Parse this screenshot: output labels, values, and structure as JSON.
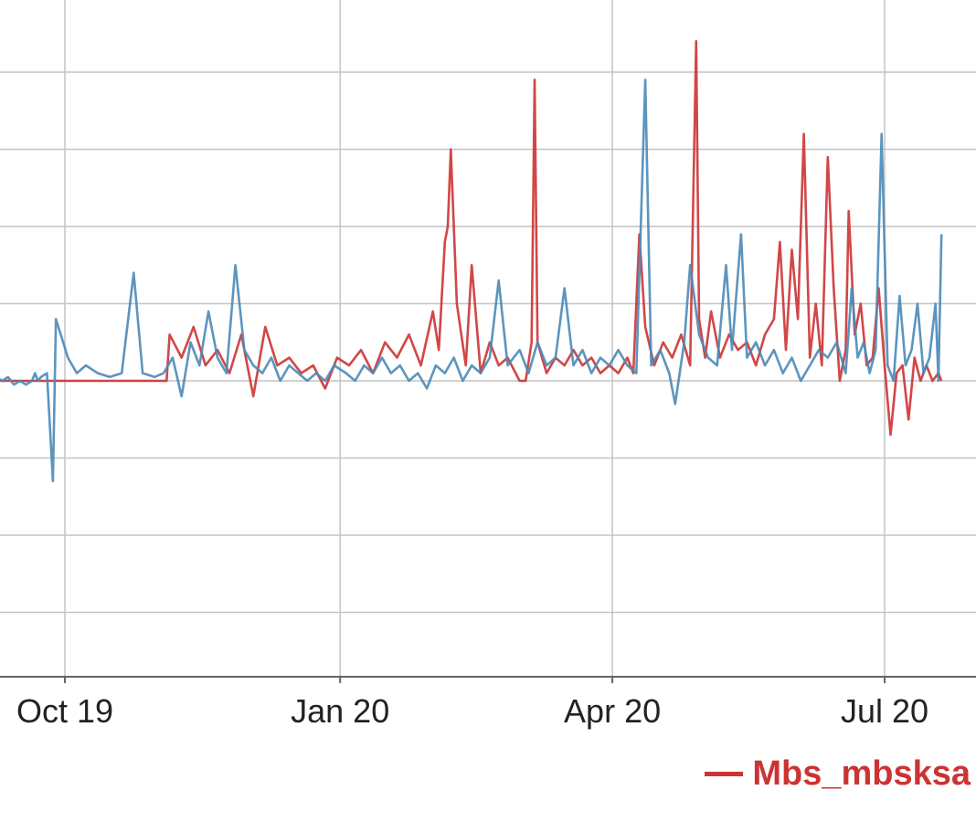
{
  "chart_data": {
    "type": "line",
    "x_tick_labels": [
      "Oct 19",
      "Jan 20",
      "Apr 20",
      "Jul 20"
    ],
    "x_range": [
      "2019-08-10",
      "2020-07-31"
    ],
    "y_range": [
      -4,
      4
    ],
    "y_labels_visible": false,
    "grid": true,
    "legend_position": "bottom-right",
    "legend": [
      "Mbs_mbsksa"
    ],
    "series": [
      {
        "name": "Mbs_mbsksa",
        "color": "#cc3333",
        "points": [
          [
            "2019-08-10",
            0.0
          ],
          [
            "2019-09-01",
            0.0
          ],
          [
            "2019-09-20",
            0.0
          ],
          [
            "2019-10-10",
            0.0
          ],
          [
            "2019-10-30",
            0.0
          ],
          [
            "2019-11-04",
            0.0
          ],
          [
            "2019-11-05",
            0.6
          ],
          [
            "2019-11-09",
            0.3
          ],
          [
            "2019-11-13",
            0.7
          ],
          [
            "2019-11-17",
            0.2
          ],
          [
            "2019-11-21",
            0.4
          ],
          [
            "2019-11-25",
            0.1
          ],
          [
            "2019-11-29",
            0.6
          ],
          [
            "2019-12-03",
            -0.2
          ],
          [
            "2019-12-07",
            0.7
          ],
          [
            "2019-12-11",
            0.2
          ],
          [
            "2019-12-15",
            0.3
          ],
          [
            "2019-12-19",
            0.1
          ],
          [
            "2019-12-23",
            0.2
          ],
          [
            "2019-12-27",
            -0.1
          ],
          [
            "2019-12-31",
            0.3
          ],
          [
            "2020-01-04",
            0.2
          ],
          [
            "2020-01-08",
            0.4
          ],
          [
            "2020-01-12",
            0.1
          ],
          [
            "2020-01-16",
            0.5
          ],
          [
            "2020-01-20",
            0.3
          ],
          [
            "2020-01-24",
            0.6
          ],
          [
            "2020-01-28",
            0.2
          ],
          [
            "2020-02-01",
            0.9
          ],
          [
            "2020-02-03",
            0.4
          ],
          [
            "2020-02-05",
            1.8
          ],
          [
            "2020-02-06",
            2.0
          ],
          [
            "2020-02-07",
            3.0
          ],
          [
            "2020-02-09",
            1.0
          ],
          [
            "2020-02-12",
            0.2
          ],
          [
            "2020-02-14",
            1.5
          ],
          [
            "2020-02-17",
            0.1
          ],
          [
            "2020-02-20",
            0.5
          ],
          [
            "2020-02-23",
            0.2
          ],
          [
            "2020-02-26",
            0.3
          ],
          [
            "2020-03-01",
            0.0
          ],
          [
            "2020-03-03",
            0.0
          ],
          [
            "2020-03-05",
            0.5
          ],
          [
            "2020-03-06",
            3.9
          ],
          [
            "2020-03-07",
            0.5
          ],
          [
            "2020-03-10",
            0.1
          ],
          [
            "2020-03-13",
            0.3
          ],
          [
            "2020-03-16",
            0.2
          ],
          [
            "2020-03-19",
            0.4
          ],
          [
            "2020-03-22",
            0.2
          ],
          [
            "2020-03-25",
            0.3
          ],
          [
            "2020-03-28",
            0.1
          ],
          [
            "2020-03-31",
            0.2
          ],
          [
            "2020-04-03",
            0.1
          ],
          [
            "2020-04-06",
            0.3
          ],
          [
            "2020-04-08",
            0.1
          ],
          [
            "2020-04-10",
            1.9
          ],
          [
            "2020-04-12",
            0.7
          ],
          [
            "2020-04-15",
            0.2
          ],
          [
            "2020-04-18",
            0.5
          ],
          [
            "2020-04-21",
            0.3
          ],
          [
            "2020-04-24",
            0.6
          ],
          [
            "2020-04-27",
            0.2
          ],
          [
            "2020-04-29",
            4.4
          ],
          [
            "2020-04-30",
            0.8
          ],
          [
            "2020-05-02",
            0.3
          ],
          [
            "2020-05-04",
            0.9
          ],
          [
            "2020-05-07",
            0.3
          ],
          [
            "2020-05-10",
            0.6
          ],
          [
            "2020-05-13",
            0.4
          ],
          [
            "2020-05-16",
            0.5
          ],
          [
            "2020-05-19",
            0.2
          ],
          [
            "2020-05-22",
            0.6
          ],
          [
            "2020-05-25",
            0.8
          ],
          [
            "2020-05-27",
            1.8
          ],
          [
            "2020-05-29",
            0.4
          ],
          [
            "2020-05-31",
            1.7
          ],
          [
            "2020-06-02",
            0.8
          ],
          [
            "2020-06-04",
            3.2
          ],
          [
            "2020-06-06",
            0.3
          ],
          [
            "2020-06-08",
            1.0
          ],
          [
            "2020-06-10",
            0.2
          ],
          [
            "2020-06-12",
            2.9
          ],
          [
            "2020-06-14",
            1.2
          ],
          [
            "2020-06-16",
            0.0
          ],
          [
            "2020-06-18",
            0.4
          ],
          [
            "2020-06-19",
            2.2
          ],
          [
            "2020-06-21",
            0.6
          ],
          [
            "2020-06-23",
            1.0
          ],
          [
            "2020-06-25",
            0.2
          ],
          [
            "2020-06-27",
            0.3
          ],
          [
            "2020-06-29",
            1.2
          ],
          [
            "2020-07-01",
            0.2
          ],
          [
            "2020-07-03",
            -0.7
          ],
          [
            "2020-07-05",
            0.1
          ],
          [
            "2020-07-07",
            0.2
          ],
          [
            "2020-07-09",
            -0.5
          ],
          [
            "2020-07-11",
            0.3
          ],
          [
            "2020-07-13",
            0.0
          ],
          [
            "2020-07-15",
            0.2
          ],
          [
            "2020-07-17",
            0.0
          ],
          [
            "2020-07-19",
            0.1
          ],
          [
            "2020-07-20",
            0.0
          ]
        ]
      },
      {
        "color": "#4a8ab8",
        "points": [
          [
            "2019-08-10",
            0.1
          ],
          [
            "2019-08-15",
            0.2
          ],
          [
            "2019-08-20",
            0.05
          ],
          [
            "2019-08-25",
            0.2
          ],
          [
            "2019-09-01",
            0.15
          ],
          [
            "2019-09-06",
            0.1
          ],
          [
            "2019-09-10",
            0.0
          ],
          [
            "2019-09-12",
            0.05
          ],
          [
            "2019-09-14",
            -0.05
          ],
          [
            "2019-09-16",
            0.0
          ],
          [
            "2019-09-18",
            -0.05
          ],
          [
            "2019-09-20",
            0.0
          ],
          [
            "2019-09-21",
            0.1
          ],
          [
            "2019-09-22",
            0.0
          ],
          [
            "2019-09-23",
            0.05
          ],
          [
            "2019-09-25",
            0.1
          ],
          [
            "2019-09-27",
            -1.3
          ],
          [
            "2019-09-28",
            0.8
          ],
          [
            "2019-10-02",
            0.3
          ],
          [
            "2019-10-05",
            0.1
          ],
          [
            "2019-10-08",
            0.2
          ],
          [
            "2019-10-12",
            0.1
          ],
          [
            "2019-10-16",
            0.05
          ],
          [
            "2019-10-20",
            0.1
          ],
          [
            "2019-10-24",
            1.4
          ],
          [
            "2019-10-27",
            0.1
          ],
          [
            "2019-10-31",
            0.05
          ],
          [
            "2019-11-03",
            0.1
          ],
          [
            "2019-11-06",
            0.3
          ],
          [
            "2019-11-09",
            -0.2
          ],
          [
            "2019-11-12",
            0.5
          ],
          [
            "2019-11-15",
            0.2
          ],
          [
            "2019-11-18",
            0.9
          ],
          [
            "2019-11-21",
            0.3
          ],
          [
            "2019-11-24",
            0.1
          ],
          [
            "2019-11-27",
            1.5
          ],
          [
            "2019-11-30",
            0.4
          ],
          [
            "2019-12-03",
            0.2
          ],
          [
            "2019-12-06",
            0.1
          ],
          [
            "2019-12-09",
            0.3
          ],
          [
            "2019-12-12",
            0.0
          ],
          [
            "2019-12-15",
            0.2
          ],
          [
            "2019-12-18",
            0.1
          ],
          [
            "2019-12-21",
            0.0
          ],
          [
            "2019-12-24",
            0.1
          ],
          [
            "2019-12-27",
            0.0
          ],
          [
            "2019-12-30",
            0.2
          ],
          [
            "2020-01-03",
            0.1
          ],
          [
            "2020-01-06",
            0.0
          ],
          [
            "2020-01-09",
            0.2
          ],
          [
            "2020-01-12",
            0.1
          ],
          [
            "2020-01-15",
            0.3
          ],
          [
            "2020-01-18",
            0.1
          ],
          [
            "2020-01-21",
            0.2
          ],
          [
            "2020-01-24",
            0.0
          ],
          [
            "2020-01-27",
            0.1
          ],
          [
            "2020-01-30",
            -0.1
          ],
          [
            "2020-02-02",
            0.2
          ],
          [
            "2020-02-05",
            0.1
          ],
          [
            "2020-02-08",
            0.3
          ],
          [
            "2020-02-11",
            0.0
          ],
          [
            "2020-02-14",
            0.2
          ],
          [
            "2020-02-17",
            0.1
          ],
          [
            "2020-02-20",
            0.3
          ],
          [
            "2020-02-23",
            1.3
          ],
          [
            "2020-02-26",
            0.2
          ],
          [
            "2020-03-01",
            0.4
          ],
          [
            "2020-03-04",
            0.1
          ],
          [
            "2020-03-07",
            0.5
          ],
          [
            "2020-03-10",
            0.2
          ],
          [
            "2020-03-13",
            0.3
          ],
          [
            "2020-03-16",
            1.2
          ],
          [
            "2020-03-19",
            0.2
          ],
          [
            "2020-03-22",
            0.4
          ],
          [
            "2020-03-25",
            0.1
          ],
          [
            "2020-03-28",
            0.3
          ],
          [
            "2020-03-31",
            0.2
          ],
          [
            "2020-04-03",
            0.4
          ],
          [
            "2020-04-06",
            0.2
          ],
          [
            "2020-04-09",
            0.1
          ],
          [
            "2020-04-12",
            3.9
          ],
          [
            "2020-04-14",
            0.2
          ],
          [
            "2020-04-17",
            0.4
          ],
          [
            "2020-04-20",
            0.1
          ],
          [
            "2020-04-22",
            -0.3
          ],
          [
            "2020-04-25",
            0.5
          ],
          [
            "2020-04-27",
            1.5
          ],
          [
            "2020-04-30",
            0.6
          ],
          [
            "2020-05-03",
            0.3
          ],
          [
            "2020-05-06",
            0.2
          ],
          [
            "2020-05-09",
            1.5
          ],
          [
            "2020-05-11",
            0.4
          ],
          [
            "2020-05-14",
            1.9
          ],
          [
            "2020-05-16",
            0.3
          ],
          [
            "2020-05-19",
            0.5
          ],
          [
            "2020-05-22",
            0.2
          ],
          [
            "2020-05-25",
            0.4
          ],
          [
            "2020-05-28",
            0.1
          ],
          [
            "2020-05-31",
            0.3
          ],
          [
            "2020-06-03",
            0.0
          ],
          [
            "2020-06-06",
            0.2
          ],
          [
            "2020-06-09",
            0.4
          ],
          [
            "2020-06-12",
            0.3
          ],
          [
            "2020-06-15",
            0.5
          ],
          [
            "2020-06-18",
            0.1
          ],
          [
            "2020-06-20",
            1.2
          ],
          [
            "2020-06-22",
            0.3
          ],
          [
            "2020-06-24",
            0.5
          ],
          [
            "2020-06-26",
            0.1
          ],
          [
            "2020-06-28",
            0.4
          ],
          [
            "2020-06-30",
            3.2
          ],
          [
            "2020-07-02",
            0.2
          ],
          [
            "2020-07-04",
            0.0
          ],
          [
            "2020-07-06",
            1.1
          ],
          [
            "2020-07-08",
            0.2
          ],
          [
            "2020-07-10",
            0.4
          ],
          [
            "2020-07-12",
            1.0
          ],
          [
            "2020-07-14",
            0.1
          ],
          [
            "2020-07-16",
            0.3
          ],
          [
            "2020-07-18",
            1.0
          ],
          [
            "2020-07-19",
            0.0
          ],
          [
            "2020-07-20",
            1.9
          ]
        ]
      }
    ]
  }
}
